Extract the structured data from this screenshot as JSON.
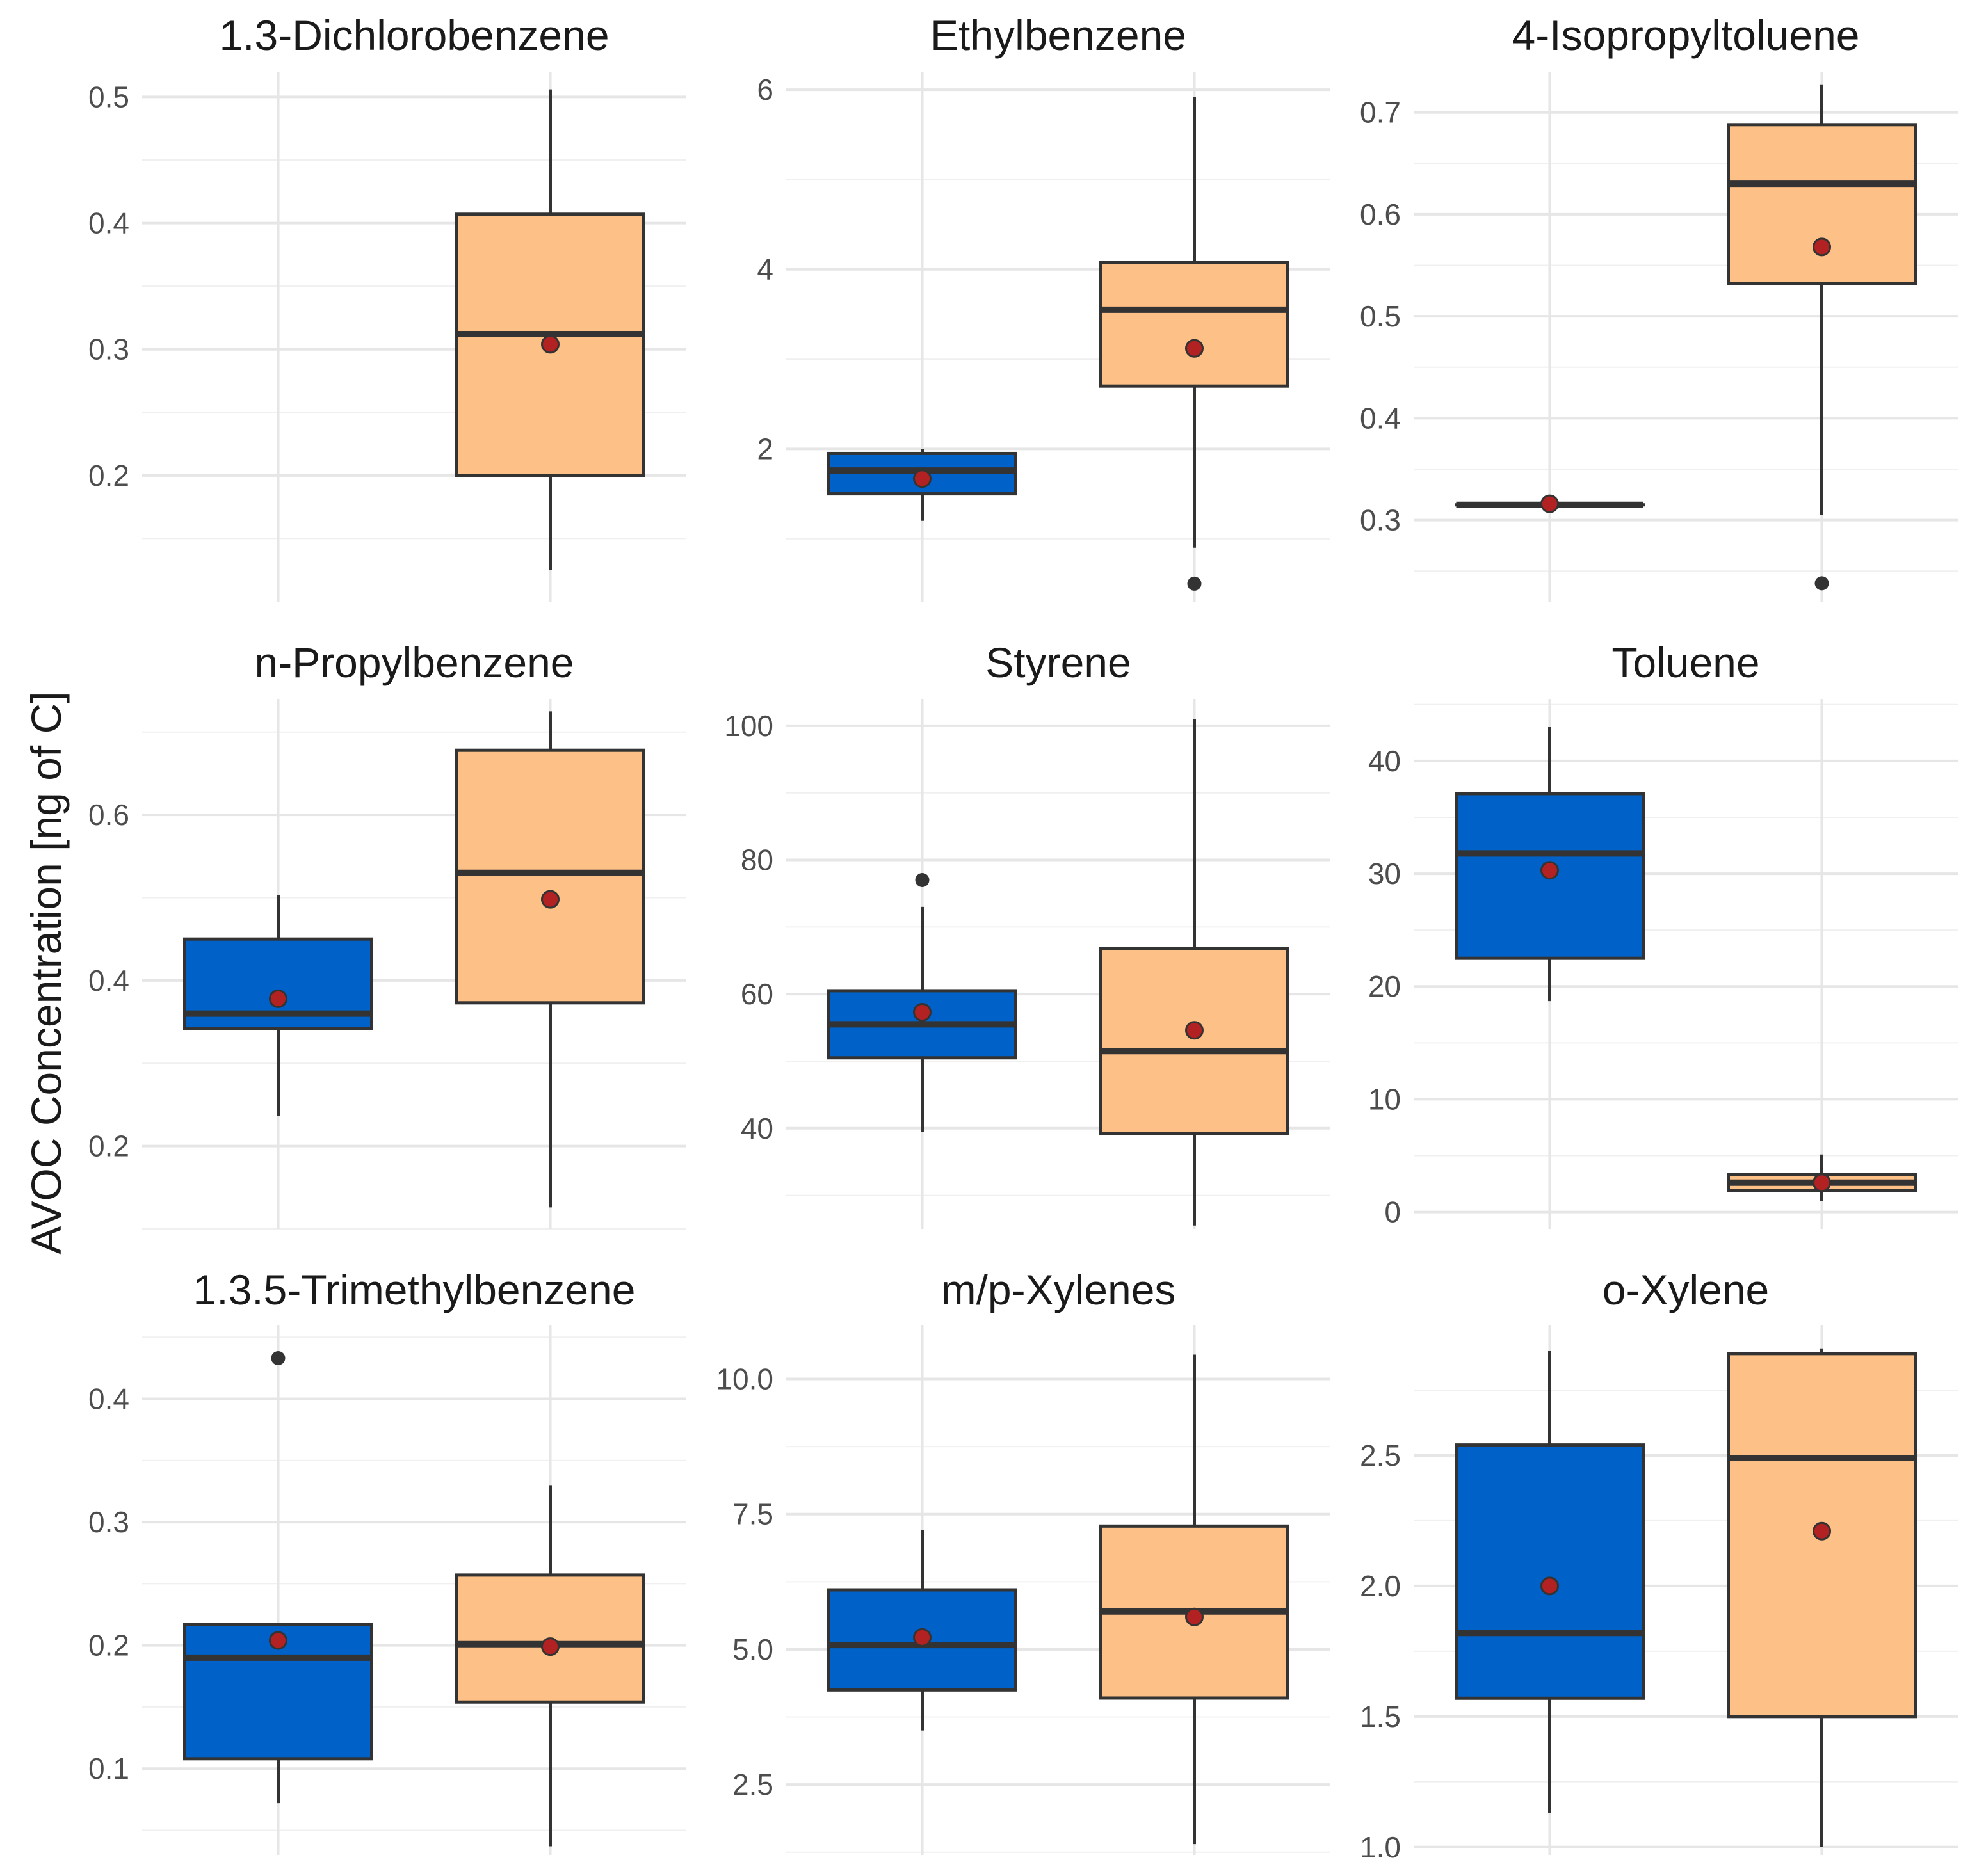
{
  "chart_data": {
    "type": "boxplot",
    "ylabel": "AVOC Concentration [ng of C]",
    "xlabel": "",
    "grid": true,
    "legend": "none",
    "group_colors": [
      "#0062c8",
      "#fdc086"
    ],
    "mean_marker_color": "#b22222",
    "panels": [
      {
        "title": "1.3-Dichlorobenzene",
        "ylim": [
          0.1,
          0.52
        ],
        "yticks": [
          0.2,
          0.3,
          0.4,
          0.5
        ],
        "tick_labels": [
          "0.2",
          "0.3",
          "0.4",
          "0.5"
        ],
        "boxes": [
          null,
          {
            "min": 0.125,
            "q1": 0.2,
            "median": 0.312,
            "q3": 0.407,
            "max": 0.506,
            "mean": 0.304,
            "outliers": []
          }
        ]
      },
      {
        "title": "Ethylbenzene",
        "ylim": [
          0.3,
          6.2
        ],
        "yticks": [
          2,
          4,
          6
        ],
        "tick_labels": [
          "2",
          "4",
          "6"
        ],
        "boxes": [
          {
            "min": 1.2,
            "q1": 1.5,
            "median": 1.76,
            "q3": 1.95,
            "max": 2.0,
            "mean": 1.67,
            "outliers": []
          },
          {
            "min": 0.9,
            "q1": 2.7,
            "median": 3.55,
            "q3": 4.08,
            "max": 5.92,
            "mean": 3.12,
            "outliers": [
              0.5
            ]
          }
        ]
      },
      {
        "title": "4-Isopropyltoluene",
        "ylim": [
          0.22,
          0.74
        ],
        "yticks": [
          0.3,
          0.4,
          0.5,
          0.6,
          0.7
        ],
        "tick_labels": [
          "0.3",
          "0.4",
          "0.5",
          "0.6",
          "0.7"
        ],
        "boxes": [
          {
            "min": 0.315,
            "q1": 0.315,
            "median": 0.315,
            "q3": 0.315,
            "max": 0.315,
            "mean": 0.316,
            "outliers": []
          },
          {
            "min": 0.305,
            "q1": 0.532,
            "median": 0.63,
            "q3": 0.688,
            "max": 0.727,
            "mean": 0.568,
            "outliers": [
              0.238
            ]
          }
        ]
      },
      {
        "title": "n-Propylbenzene",
        "ylim": [
          0.1,
          0.74
        ],
        "yticks": [
          0.2,
          0.4,
          0.6
        ],
        "tick_labels": [
          "0.2",
          "0.4",
          "0.6"
        ],
        "boxes": [
          {
            "min": 0.236,
            "q1": 0.342,
            "median": 0.36,
            "q3": 0.45,
            "max": 0.503,
            "mean": 0.378,
            "outliers": []
          },
          {
            "min": 0.126,
            "q1": 0.373,
            "median": 0.53,
            "q3": 0.678,
            "max": 0.725,
            "mean": 0.498,
            "outliers": []
          }
        ]
      },
      {
        "title": "Styrene",
        "ylim": [
          25,
          104
        ],
        "yticks": [
          40,
          60,
          80,
          100
        ],
        "tick_labels": [
          "40",
          "60",
          "80",
          "100"
        ],
        "boxes": [
          {
            "min": 39.5,
            "q1": 50.5,
            "median": 55.5,
            "q3": 60.5,
            "max": 73,
            "mean": 57.3,
            "outliers": [
              77
            ]
          },
          {
            "min": 25.5,
            "q1": 39.2,
            "median": 51.5,
            "q3": 66.8,
            "max": 101,
            "mean": 54.6,
            "outliers": []
          }
        ]
      },
      {
        "title": "Toluene",
        "ylim": [
          -1.5,
          45.5
        ],
        "yticks": [
          0,
          10,
          20,
          30,
          40
        ],
        "tick_labels": [
          "0",
          "10",
          "20",
          "30",
          "40"
        ],
        "boxes": [
          {
            "min": 18.7,
            "q1": 22.5,
            "median": 31.8,
            "q3": 37.1,
            "max": 43.0,
            "mean": 30.3,
            "outliers": []
          },
          {
            "min": 1.0,
            "q1": 1.9,
            "median": 2.6,
            "q3": 3.3,
            "max": 5.1,
            "mean": 2.6,
            "outliers": []
          }
        ]
      },
      {
        "title": "1.3.5-Trimethylbenzene",
        "ylim": [
          0.03,
          0.46
        ],
        "yticks": [
          0.1,
          0.2,
          0.3,
          0.4
        ],
        "tick_labels": [
          "0.1",
          "0.2",
          "0.3",
          "0.4"
        ],
        "boxes": [
          {
            "min": 0.072,
            "q1": 0.108,
            "median": 0.19,
            "q3": 0.217,
            "max": 0.217,
            "mean": 0.204,
            "outliers": [
              0.433
            ]
          },
          {
            "min": 0.037,
            "q1": 0.154,
            "median": 0.201,
            "q3": 0.257,
            "max": 0.33,
            "mean": 0.199,
            "outliers": []
          }
        ]
      },
      {
        "title": "m/p-Xylenes",
        "ylim": [
          1.2,
          11.0
        ],
        "yticks": [
          2.5,
          5.0,
          7.5,
          10.0
        ],
        "tick_labels": [
          "2.5",
          "5.0",
          "7.5",
          "10.0"
        ],
        "boxes": [
          {
            "min": 3.5,
            "q1": 4.25,
            "median": 5.08,
            "q3": 6.1,
            "max": 7.2,
            "mean": 5.22,
            "outliers": []
          },
          {
            "min": 1.4,
            "q1": 4.1,
            "median": 5.7,
            "q3": 7.28,
            "max": 10.45,
            "mean": 5.6,
            "outliers": []
          }
        ]
      },
      {
        "title": "o-Xylene",
        "ylim": [
          0.97,
          3.0
        ],
        "yticks": [
          1.0,
          1.5,
          2.0,
          2.5
        ],
        "tick_labels": [
          "1.0",
          "1.5",
          "2.0",
          "2.5"
        ],
        "boxes": [
          {
            "min": 1.13,
            "q1": 1.57,
            "median": 1.82,
            "q3": 2.54,
            "max": 2.9,
            "mean": 2.0,
            "outliers": []
          },
          {
            "min": 1.0,
            "q1": 1.5,
            "median": 2.49,
            "q3": 2.89,
            "max": 2.91,
            "mean": 2.21,
            "outliers": []
          }
        ]
      }
    ]
  }
}
